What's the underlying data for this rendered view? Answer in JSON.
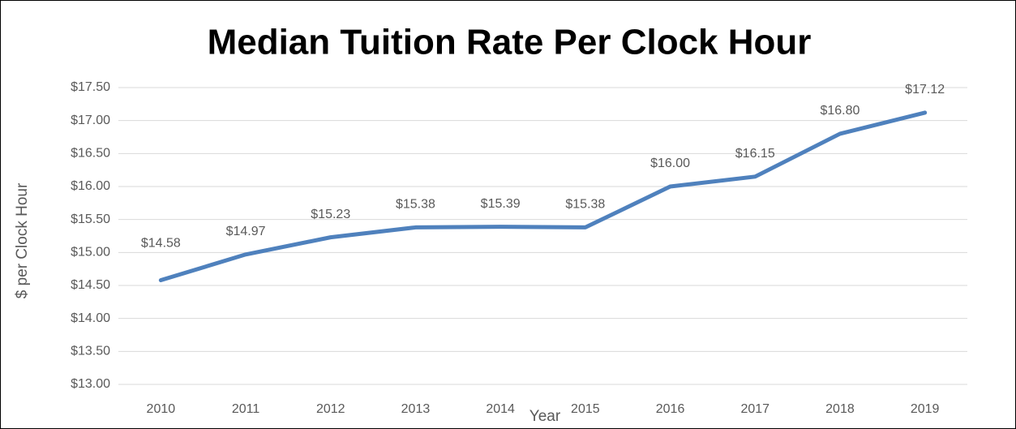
{
  "chart_data": {
    "type": "line",
    "title": "Median Tuition Rate Per Clock Hour",
    "x_label": "Year",
    "y_label": "$ per Clock Hour",
    "categories": [
      "2010",
      "2011",
      "2012",
      "2013",
      "2014",
      "2015",
      "2016",
      "2017",
      "2018",
      "2019"
    ],
    "series": [
      {
        "name": "Median Tuition Rate",
        "color": "#4f81bd",
        "values": [
          14.58,
          14.97,
          15.23,
          15.38,
          15.39,
          15.38,
          16.0,
          16.15,
          16.8,
          17.12
        ],
        "value_labels": [
          "$14.58",
          "$14.97",
          "$15.23",
          "$15.38",
          "$15.39",
          "$15.38",
          "$16.00",
          "$16.15",
          "$16.80",
          "$17.12"
        ]
      }
    ],
    "ylim": [
      13,
      17.5
    ],
    "yticks": [
      {
        "value": 13,
        "label": "$13.00"
      },
      {
        "value": 13.5,
        "label": "$13.50"
      },
      {
        "value": 14,
        "label": "$14.00"
      },
      {
        "value": 14.5,
        "label": "$14.50"
      },
      {
        "value": 15,
        "label": "$15.00"
      },
      {
        "value": 15.5,
        "label": "$15.50"
      },
      {
        "value": 16,
        "label": "$16.00"
      },
      {
        "value": 16.5,
        "label": "$16.50"
      },
      {
        "value": 17,
        "label": "$17.00"
      },
      {
        "value": 17.5,
        "label": "$17.50"
      }
    ],
    "grid": true
  }
}
